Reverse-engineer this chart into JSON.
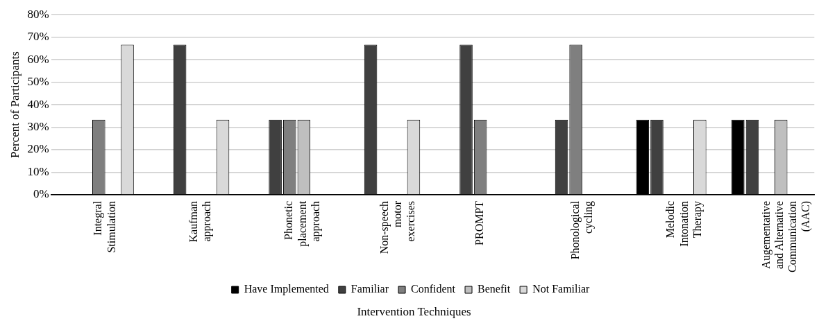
{
  "chart_data": {
    "type": "bar",
    "xlabel": "Intervention Techniques",
    "ylabel": "Percent of Participants",
    "categories": [
      "Integral\nStimulation",
      "Kaufman\napproach",
      "Phonetic\nplacement\napproach",
      "Non-speech\nmotor\nexercises",
      "PROMPT",
      "Phonological\ncycling",
      "Melodic\nIntonation\nTherapy",
      "Augementative\nand Alternative\nCommunication\n(AAC)"
    ],
    "series": [
      {
        "name": "Have Implemented",
        "color": "#000000",
        "values": [
          0,
          0,
          0,
          0,
          0,
          0,
          33.3,
          33.3
        ]
      },
      {
        "name": "Familiar",
        "color": "#404040",
        "values": [
          0,
          66.7,
          33.3,
          66.7,
          66.7,
          33.3,
          33.3,
          33.3
        ]
      },
      {
        "name": "Confident",
        "color": "#7f7f7f",
        "values": [
          33.3,
          0,
          33.3,
          0,
          33.3,
          66.7,
          0,
          0
        ]
      },
      {
        "name": "Benefit",
        "color": "#bfbfbf",
        "values": [
          0,
          0,
          33.3,
          0,
          0,
          0,
          0,
          33.3
        ]
      },
      {
        "name": "Not Familiar",
        "color": "#d9d9d9",
        "values": [
          66.7,
          33.3,
          0,
          33.3,
          0,
          0,
          33.3,
          0
        ]
      }
    ],
    "ylim": [
      0,
      80
    ],
    "yticks": [
      {
        "value": 0,
        "label": "0%"
      },
      {
        "value": 10,
        "label": "10%"
      },
      {
        "value": 20,
        "label": "20%"
      },
      {
        "value": 30,
        "label": "30%"
      },
      {
        "value": 40,
        "label": "40%"
      },
      {
        "value": 50,
        "label": "50%"
      },
      {
        "value": 60,
        "label": "60%"
      },
      {
        "value": 70,
        "label": "70%"
      },
      {
        "value": 80,
        "label": "80%"
      }
    ],
    "grid": "y",
    "legend": "bottom"
  }
}
